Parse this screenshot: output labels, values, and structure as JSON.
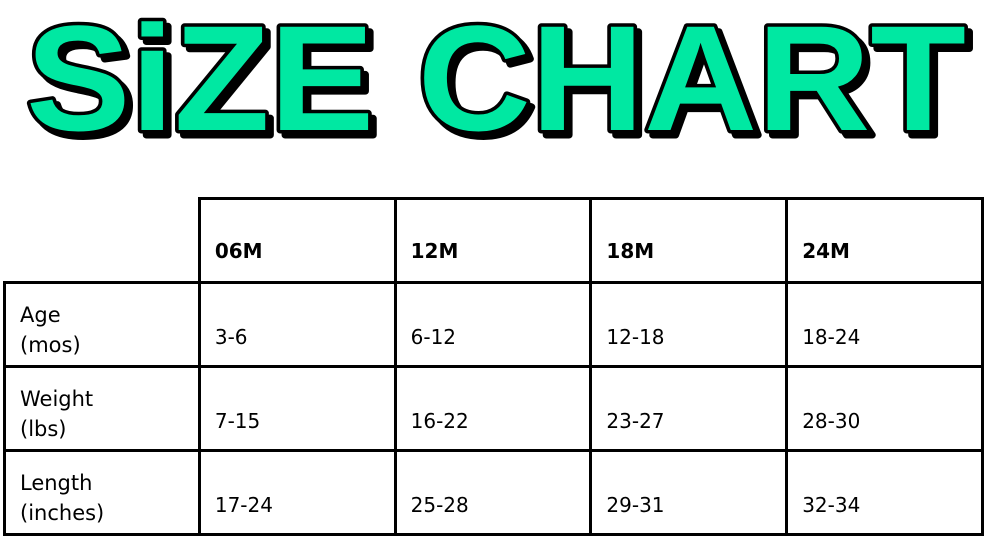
{
  "title": "SiZE CHART",
  "colors": {
    "title_fill": "#00E8A2",
    "title_outline": "#000000",
    "grid": "#000000"
  },
  "table": {
    "columns": [
      "06M",
      "12M",
      "18M",
      "24M"
    ],
    "rows": [
      {
        "label_line1": "Age",
        "label_line2": "(mos)",
        "values": [
          "3-6",
          "6-12",
          "12-18",
          "18-24"
        ]
      },
      {
        "label_line1": "Weight",
        "label_line2": "(lbs)",
        "values": [
          "7-15",
          "16-22",
          "23-27",
          "28-30"
        ]
      },
      {
        "label_line1": "Length",
        "label_line2": "(inches)",
        "values": [
          "17-24",
          "25-28",
          "29-31",
          "32-34"
        ]
      }
    ]
  }
}
